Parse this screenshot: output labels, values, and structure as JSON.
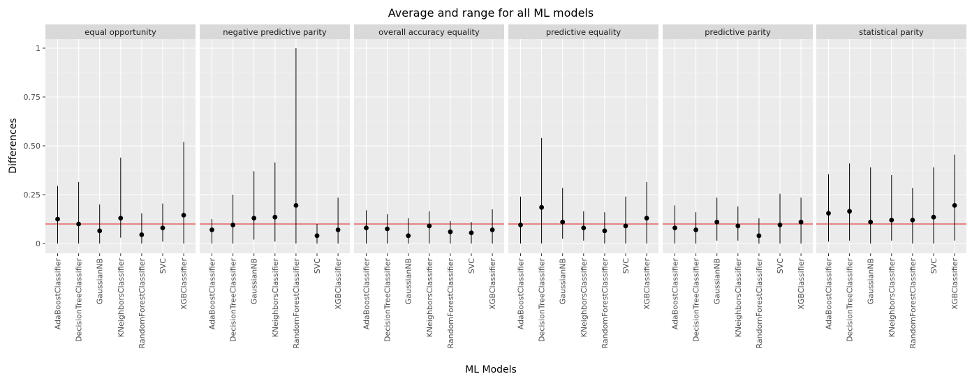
{
  "chart_data": {
    "type": "scatter",
    "title": "Average and range for all ML models",
    "xlabel": "ML Models",
    "ylabel": "Differences",
    "ylim": [
      -0.05,
      1.1
    ],
    "y_ticks": [
      0,
      0.25,
      0.5,
      0.75,
      1
    ],
    "y_tick_labels": [
      "0",
      "0.25",
      "0.50",
      "0.75",
      "1"
    ],
    "reference_line": {
      "y": 0.1,
      "color": "#e41a1c"
    },
    "grid": true,
    "categories": [
      "AdaBoostClassifier",
      "DecisionTreeClassifier",
      "GaussianNB",
      "KNeighborsClassifier",
      "RandomForestClassifier",
      "SVC",
      "XGBClassifier"
    ],
    "panels": [
      {
        "name": "equal opportunity",
        "mean": [
          0.125,
          0.1,
          0.065,
          0.13,
          0.045,
          0.08,
          0.145
        ],
        "min": [
          0.0,
          0.0,
          0.0,
          0.03,
          0.0,
          0.01,
          0.0
        ],
        "max": [
          0.295,
          0.315,
          0.2,
          0.44,
          0.155,
          0.205,
          0.52
        ]
      },
      {
        "name": "negative predictive parity",
        "mean": [
          0.07,
          0.095,
          0.13,
          0.135,
          0.195,
          0.04,
          0.07
        ],
        "min": [
          0.0,
          0.0,
          0.02,
          0.01,
          0.0,
          0.0,
          0.0
        ],
        "max": [
          0.125,
          0.25,
          0.37,
          0.415,
          1.0,
          0.1,
          0.235
        ]
      },
      {
        "name": "overall accuracy equality",
        "mean": [
          0.08,
          0.075,
          0.04,
          0.09,
          0.06,
          0.055,
          0.07
        ],
        "min": [
          0.0,
          0.0,
          0.0,
          0.0,
          0.0,
          0.0,
          0.0
        ],
        "max": [
          0.17,
          0.15,
          0.13,
          0.165,
          0.115,
          0.11,
          0.175
        ]
      },
      {
        "name": "predictive equality",
        "mean": [
          0.095,
          0.185,
          0.11,
          0.08,
          0.065,
          0.09,
          0.13
        ],
        "min": [
          0.0,
          0.0,
          0.025,
          0.015,
          0.0,
          0.0,
          0.0
        ],
        "max": [
          0.24,
          0.54,
          0.285,
          0.165,
          0.16,
          0.24,
          0.315
        ]
      },
      {
        "name": "predictive parity",
        "mean": [
          0.08,
          0.07,
          0.11,
          0.09,
          0.04,
          0.095,
          0.11
        ],
        "min": [
          0.0,
          0.0,
          0.015,
          0.015,
          0.0,
          0.0,
          0.0
        ],
        "max": [
          0.195,
          0.16,
          0.235,
          0.19,
          0.13,
          0.255,
          0.235
        ]
      },
      {
        "name": "statistical parity",
        "mean": [
          0.155,
          0.165,
          0.11,
          0.12,
          0.12,
          0.135,
          0.195
        ],
        "min": [
          0.01,
          0.015,
          0.0,
          0.015,
          0.0,
          0.0,
          0.015
        ],
        "max": [
          0.355,
          0.41,
          0.39,
          0.35,
          0.285,
          0.39,
          0.455
        ]
      }
    ]
  }
}
